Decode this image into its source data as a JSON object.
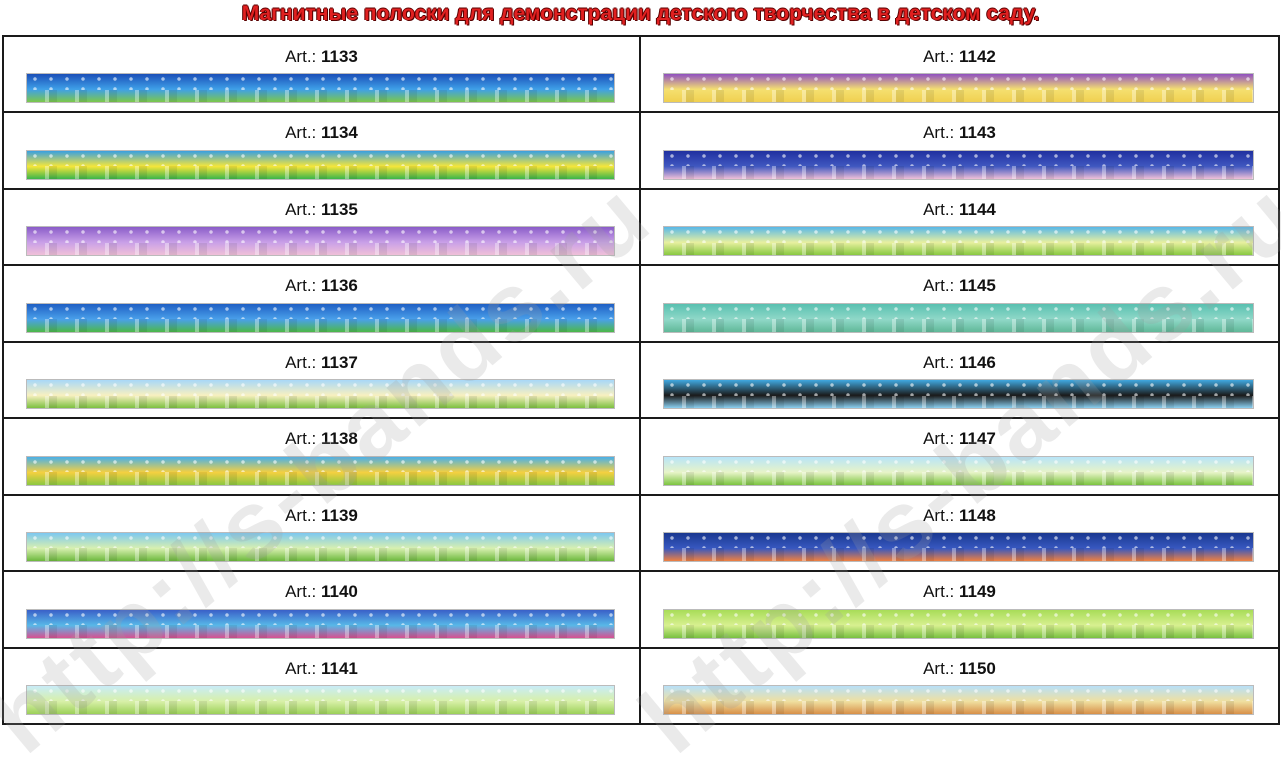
{
  "title": "Магнитные полоски для демонстрации детского творчества в детском саду.",
  "art_prefix": "Art.:",
  "watermark": "http://s-bands.ru",
  "left": [
    {
      "num": "1133",
      "colors": [
        "#1b4fb8",
        "#3fa0e8",
        "#7cc84a"
      ]
    },
    {
      "num": "1134",
      "colors": [
        "#3aa0e0",
        "#f5e63a",
        "#3bb54a"
      ]
    },
    {
      "num": "1135",
      "colors": [
        "#8a5cc8",
        "#c9a0e8",
        "#f0c0d8"
      ]
    },
    {
      "num": "1136",
      "colors": [
        "#1f5fc4",
        "#4aa0ea",
        "#4cb848"
      ]
    },
    {
      "num": "1137",
      "colors": [
        "#a8d8f8",
        "#f8f0c0",
        "#7cc040"
      ]
    },
    {
      "num": "1138",
      "colors": [
        "#4ab0e8",
        "#f5d040",
        "#8cc840"
      ]
    },
    {
      "num": "1139",
      "colors": [
        "#7cc8f0",
        "#d8f0b0",
        "#6cb83c"
      ]
    },
    {
      "num": "1140",
      "colors": [
        "#3a60c8",
        "#58b8e8",
        "#d85090"
      ]
    },
    {
      "num": "1141",
      "colors": [
        "#c8ecf8",
        "#d8f0a8",
        "#9cd058"
      ]
    }
  ],
  "right": [
    {
      "num": "1142",
      "colors": [
        "#9050c0",
        "#f5e070",
        "#f0d050"
      ]
    },
    {
      "num": "1143",
      "colors": [
        "#2030a0",
        "#4058c0",
        "#f0c0d8"
      ]
    },
    {
      "num": "1144",
      "colors": [
        "#58b8e8",
        "#e8f0a0",
        "#88c840"
      ]
    },
    {
      "num": "1145",
      "colors": [
        "#58c0b0",
        "#90d8c8",
        "#60b898"
      ]
    },
    {
      "num": "1146",
      "colors": [
        "#40a8e0",
        "#1a1a1a",
        "#8ad0f0"
      ]
    },
    {
      "num": "1147",
      "colors": [
        "#b8e4f8",
        "#e8f4c8",
        "#7cc440"
      ]
    },
    {
      "num": "1148",
      "colors": [
        "#1a3890",
        "#3858c0",
        "#f08040"
      ]
    },
    {
      "num": "1149",
      "colors": [
        "#a8dc58",
        "#d8f090",
        "#78c040"
      ]
    },
    {
      "num": "1150",
      "colors": [
        "#b8e0f8",
        "#f0e0a0",
        "#d89048"
      ]
    }
  ]
}
